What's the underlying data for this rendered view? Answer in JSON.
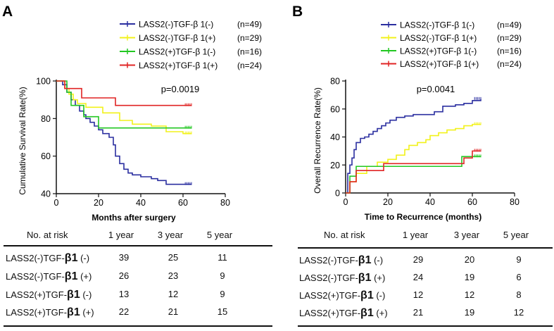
{
  "chart_data": [
    {
      "panel": "A",
      "type": "line",
      "step": true,
      "xlabel": "Months after surgery",
      "ylabel": "Cumulative Survival Rate(%)",
      "xlim": [
        0,
        80
      ],
      "ylim": [
        40,
        100
      ],
      "xticks": [
        0,
        20,
        40,
        60,
        80
      ],
      "yticks": [
        40,
        60,
        80,
        100
      ],
      "pvalue": "p=0.0019",
      "series": [
        {
          "name": "LASS2(-)TGF-β 1(-)",
          "n": "(n=49)",
          "color": "#2b2fa0",
          "x": [
            0,
            3,
            5,
            7,
            9,
            11,
            13,
            14,
            16,
            18,
            20,
            22,
            25,
            27,
            28,
            30,
            32,
            34,
            36,
            40,
            45,
            48,
            52,
            60,
            64
          ],
          "y": [
            100,
            98,
            94,
            90,
            87,
            84,
            82,
            80,
            78,
            76,
            74,
            72,
            70,
            66,
            60,
            56,
            53,
            51,
            50,
            49,
            48,
            47,
            45,
            45,
            45
          ]
        },
        {
          "name": "LASS2(-)TGF-β 1(+)",
          "n": "(n=29)",
          "color": "#f2f21a",
          "x": [
            0,
            4,
            6,
            8,
            10,
            14,
            22,
            30,
            36,
            45,
            52,
            60,
            64
          ],
          "y": [
            100,
            96,
            93,
            90,
            88,
            86,
            83,
            79,
            77,
            76,
            73,
            72,
            72
          ]
        },
        {
          "name": "LASS2(+)TGF-β 1(-)",
          "n": "(n=16)",
          "color": "#22c722",
          "x": [
            0,
            5,
            7,
            13,
            20,
            32,
            64
          ],
          "y": [
            100,
            94,
            87,
            81,
            75,
            75,
            75
          ]
        },
        {
          "name": "LASS2(+)TGF-β 1(+)",
          "n": "(n=24)",
          "color": "#e02424",
          "x": [
            0,
            4,
            12,
            28,
            64
          ],
          "y": [
            100,
            96,
            91,
            87,
            87
          ]
        }
      ]
    },
    {
      "panel": "B",
      "type": "line",
      "step": true,
      "xlabel": "Time to Recurrence (months)",
      "ylabel": "Overall Recurrence Rate(%)",
      "xlim": [
        0,
        80
      ],
      "ylim": [
        0,
        80
      ],
      "xticks": [
        0,
        20,
        40,
        60,
        80
      ],
      "yticks": [
        0,
        20,
        40,
        60,
        80
      ],
      "pvalue": "p=0.0041",
      "series": [
        {
          "name": "LASS2(-)TGF-β 1(-)",
          "n": "(n=49)",
          "color": "#2b2fa0",
          "x": [
            0,
            1,
            2,
            3,
            4,
            5,
            7,
            9,
            11,
            13,
            15,
            17,
            19,
            21,
            24,
            28,
            32,
            36,
            42,
            46,
            52,
            56,
            60,
            64
          ],
          "y": [
            0,
            14,
            20,
            25,
            31,
            36,
            39,
            40,
            42,
            44,
            46,
            48,
            50,
            52,
            54,
            55,
            56,
            56,
            58,
            62,
            63,
            64,
            66,
            67
          ]
        },
        {
          "name": "LASS2(-)TGF-β 1(+)",
          "n": "(n=29)",
          "color": "#f2f21a",
          "x": [
            0,
            2,
            5,
            10,
            15,
            20,
            24,
            28,
            30,
            34,
            38,
            40,
            44,
            48,
            52,
            56,
            60,
            64
          ],
          "y": [
            0,
            8,
            14,
            19,
            22,
            24,
            27,
            31,
            34,
            36,
            38,
            41,
            43,
            45,
            46,
            48,
            49,
            49
          ]
        },
        {
          "name": "LASS2(+)TGF-β 1(-)",
          "n": "(n=16)",
          "color": "#22c722",
          "x": [
            0,
            2,
            5,
            48,
            55,
            64
          ],
          "y": [
            0,
            12,
            19,
            19,
            26,
            26
          ]
        },
        {
          "name": "LASS2(+)TGF-β 1(+)",
          "n": "(n=24)",
          "color": "#e02424",
          "x": [
            0,
            2,
            5,
            18,
            53,
            56,
            60,
            64
          ],
          "y": [
            0,
            8,
            16,
            21,
            21,
            25,
            30,
            30
          ]
        }
      ]
    }
  ],
  "panels": {
    "a_label": "A",
    "b_label": "B"
  },
  "risk_tables": [
    {
      "header": [
        "No. at risk",
        "1 year",
        "3 year",
        "5 year"
      ],
      "rows": [
        {
          "p1": "LASS2(-)TGF-",
          "beta": "β1",
          "sign": "(-)",
          "v": [
            "39",
            "25",
            "11"
          ]
        },
        {
          "p1": "LASS2(-)TGF-",
          "beta": "β1",
          "sign": "(+)",
          "v": [
            "26",
            "23",
            "9"
          ]
        },
        {
          "p1": "LASS2(+)TGF-",
          "beta": "β1",
          "sign": "(-)",
          "v": [
            "13",
            "12",
            "9"
          ]
        },
        {
          "p1": "LASS2(+)TGF-",
          "beta": "β1",
          "sign": "(+)",
          "v": [
            "22",
            "21",
            "15"
          ]
        }
      ]
    },
    {
      "header": [
        "No. at risk",
        "1 year",
        "3 year",
        "5 year"
      ],
      "rows": [
        {
          "p1": "LASS2(-)TGF-",
          "beta": "β1",
          "sign": "(-)",
          "v": [
            "29",
            "20",
            "9"
          ]
        },
        {
          "p1": "LASS2(-)TGF-",
          "beta": "β1",
          "sign": "(+)",
          "v": [
            "24",
            "19",
            "6"
          ]
        },
        {
          "p1": "LASS2(+)TGF-",
          "beta": "β1",
          "sign": "(-)",
          "v": [
            "12",
            "12",
            "8"
          ]
        },
        {
          "p1": "LASS2(+)TGF-",
          "beta": "β1",
          "sign": "(+)",
          "v": [
            "21",
            "19",
            "12"
          ]
        }
      ]
    }
  ]
}
